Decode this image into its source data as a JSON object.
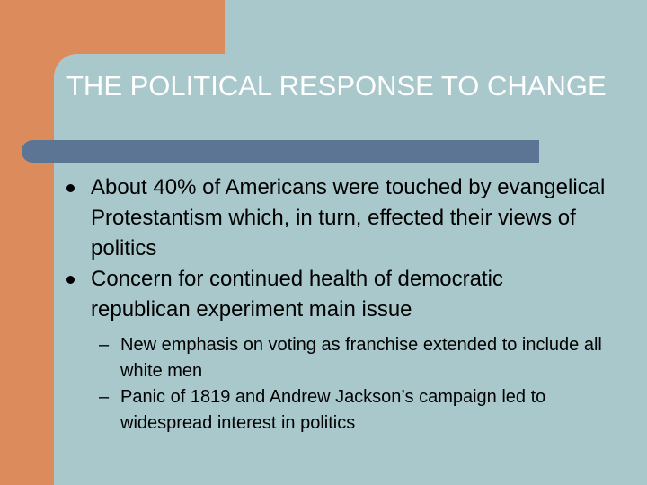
{
  "slide": {
    "title": "THE POLITICAL RESPONSE TO CHANGE",
    "bullets": [
      {
        "text": "About 40% of Americans were touched by evangelical Protestantism which, in turn, effected their views of politics"
      },
      {
        "text": "Concern for continued health of democratic republican experiment main issue"
      }
    ],
    "sub_bullets": [
      {
        "marker": "–",
        "text": "New emphasis on voting as franchise extended to include all white men"
      },
      {
        "marker": "–",
        "text": "Panic of 1819 and Andrew Jackson’s campaign led to widespread interest in politics"
      }
    ]
  },
  "colors": {
    "background": "#a8c8cc",
    "accent_block": "#dc8c5c",
    "title_bar": "#5c7595",
    "title_text": "#ffffff"
  }
}
